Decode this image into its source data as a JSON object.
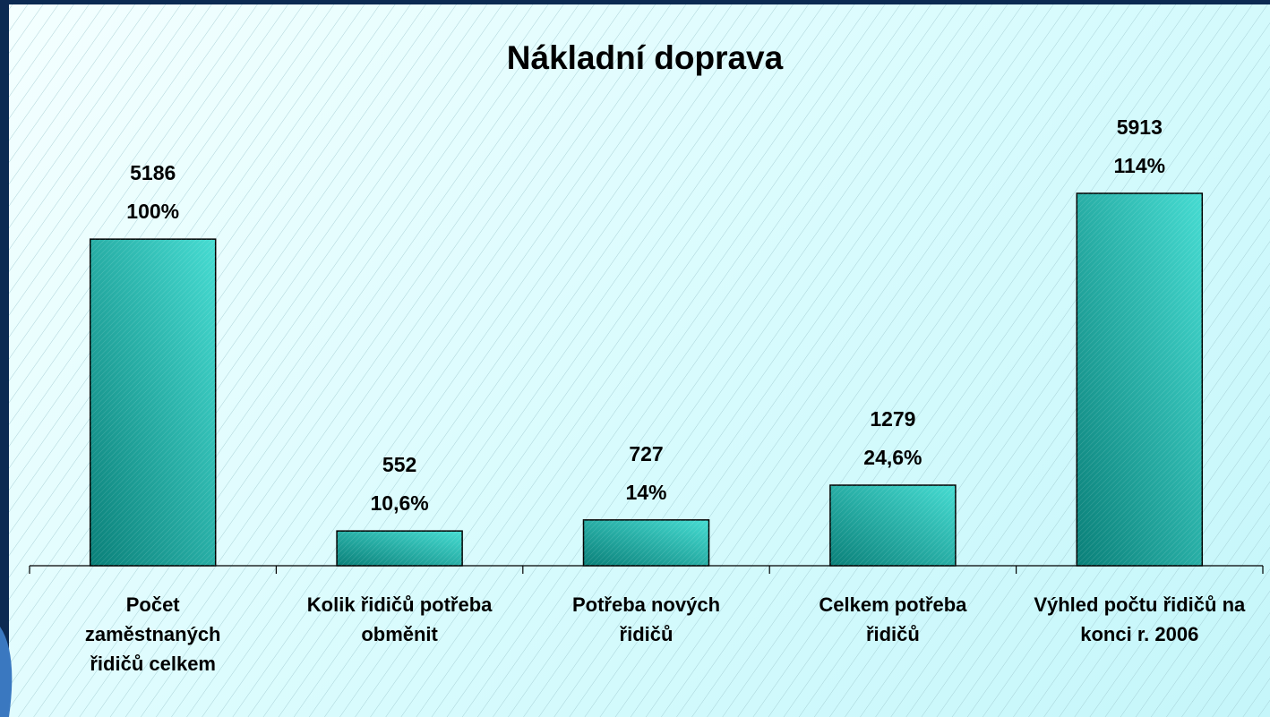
{
  "chart_data": {
    "type": "bar",
    "title": "Nákladní doprava",
    "categories": [
      "Počet zaměstnaných řidičů celkem",
      "Kolik řidičů potřeba obměnit",
      "Potřeba nových řidičů",
      "Celkem potřeba řidičů",
      "Výhled počtu řidičů na konci r. 2006"
    ],
    "values": [
      5186,
      552,
      727,
      1279,
      5913
    ],
    "percent_labels": [
      "100%",
      "10,6%",
      "14%",
      "24,6%",
      "114%"
    ],
    "color": "#2bb5ad"
  }
}
